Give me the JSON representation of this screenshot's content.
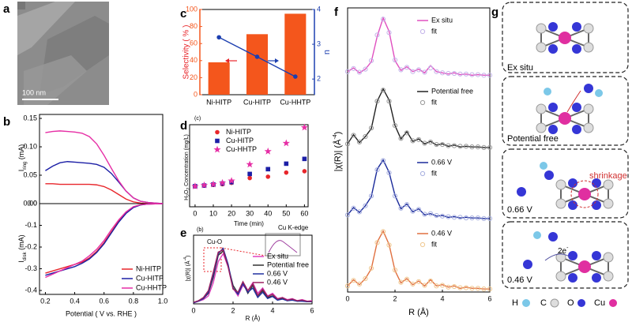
{
  "panel_a": {
    "label": "a",
    "scale_bar": "100 nm"
  },
  "chart_data": [
    {
      "type": "line",
      "panel": "b",
      "ylabel": [
        "I",
        "ring",
        " (mA)"
      ],
      "x": [
        0.2,
        0.25,
        0.3,
        0.35,
        0.4,
        0.45,
        0.5,
        0.55,
        0.6,
        0.65,
        0.7,
        0.75,
        0.8,
        0.85,
        0.9,
        0.95,
        1.0
      ],
      "xlim": [
        0.16,
        1.0
      ],
      "ylim": [
        0,
        0.157
      ],
      "yticks": [
        {
          "value": 0,
          "label": "0.00"
        },
        0.05,
        {
          "value": 0.1,
          "label": "0.10"
        },
        0.15
      ],
      "series": [
        {
          "color": "#e8262b",
          "values": [
            0.035,
            0.035,
            0.034,
            0.034,
            0.034,
            0.034,
            0.034,
            0.033,
            0.03,
            0.024,
            0.016,
            0.008,
            0.003,
            0.001,
            0,
            0,
            0
          ]
        },
        {
          "color": "#1c1fa6",
          "values": [
            0.058,
            0.066,
            0.072,
            0.074,
            0.073,
            0.072,
            0.071,
            0.069,
            0.064,
            0.053,
            0.038,
            0.022,
            0.01,
            0.004,
            0.002,
            0.001,
            0
          ]
        },
        {
          "color": "#e62ea5",
          "values": [
            0.125,
            0.127,
            0.128,
            0.127,
            0.126,
            0.124,
            0.118,
            0.105,
            0.085,
            0.062,
            0.04,
            0.022,
            0.01,
            0.004,
            0.002,
            0.001,
            0
          ]
        }
      ]
    },
    {
      "type": "line",
      "ylabel": [
        "I",
        "disk",
        " (mA)"
      ],
      "xlabel": "Potential ( V vs. RHE )",
      "x": [
        0.2,
        0.25,
        0.3,
        0.35,
        0.4,
        0.45,
        0.5,
        0.55,
        0.6,
        0.65,
        0.7,
        0.75,
        0.8,
        0.85,
        0.9,
        0.95,
        1.0
      ],
      "xlim": [
        0.16,
        1.0
      ],
      "ylim": [
        -0.418,
        0
      ],
      "xticks": [
        0.2,
        0.4,
        0.6,
        0.8,
        {
          "value": 1.0,
          "label": "1.0"
        }
      ],
      "yticks": [
        {
          "value": 0,
          "label": "0.0"
        },
        -0.1,
        -0.2,
        -0.3,
        -0.4
      ],
      "legend": "lower right",
      "series": [
        {
          "name": "Ni-HITP",
          "color": "#e8262b",
          "values": [
            -0.32,
            -0.31,
            -0.3,
            -0.29,
            -0.28,
            -0.27,
            -0.25,
            -0.22,
            -0.18,
            -0.13,
            -0.08,
            -0.04,
            -0.015,
            -0.005,
            -0.002,
            -0.001,
            0
          ]
        },
        {
          "name": "Cu-HITP",
          "color": "#1c1fa6",
          "values": [
            -0.33,
            -0.32,
            -0.31,
            -0.3,
            -0.29,
            -0.275,
            -0.255,
            -0.225,
            -0.185,
            -0.135,
            -0.085,
            -0.045,
            -0.018,
            -0.006,
            -0.002,
            -0.001,
            0
          ]
        },
        {
          "name": "Cu-HHTP",
          "color": "#e62ea5",
          "values": [
            -0.34,
            -0.325,
            -0.31,
            -0.295,
            -0.28,
            -0.265,
            -0.24,
            -0.21,
            -0.17,
            -0.12,
            -0.075,
            -0.038,
            -0.014,
            -0.005,
            -0.002,
            -0.001,
            0
          ]
        }
      ]
    },
    {
      "type": "bar",
      "panel": "c",
      "ylabel": "Selectivity ( % )",
      "y2label": "n",
      "categories": [
        "Ni-HITP",
        "Cu-HITP",
        "Cu-HHTP"
      ],
      "ylim": [
        0,
        100
      ],
      "yticks": [
        0,
        20,
        40,
        60,
        80,
        100
      ],
      "y2lim": [
        1.55,
        4
      ],
      "y2ticks": [
        2,
        3,
        4
      ],
      "series": [
        {
          "color": "#f4561c",
          "values": [
            38,
            71,
            95
          ]
        },
        {
          "color": "#1c3fb0",
          "axis": "y2",
          "values": [
            3.2,
            2.64,
            2.07
          ]
        }
      ]
    },
    {
      "type": "scatter",
      "panel": "d",
      "annotations": [
        "(c)"
      ],
      "ylabel": [
        "H",
        "2",
        "O",
        "2",
        " Concentration (mg/L)"
      ],
      "xlabel": "Time (min)",
      "x": [
        0,
        5,
        10,
        15,
        20,
        30,
        40,
        50,
        60
      ],
      "xlim": [
        -3,
        62
      ],
      "ylim": [
        -3,
        9
      ],
      "xticks": [
        0,
        10,
        20,
        30,
        40,
        50,
        60
      ],
      "legend": "upper left",
      "series": [
        {
          "name": "Ni-HITP",
          "color": "#e8262b",
          "marker": "circle",
          "values": [
            0,
            0.1,
            0.2,
            0.3,
            0.5,
            1.2,
            1.4,
            2.0,
            2.2
          ]
        },
        {
          "name": "Cu-HITP",
          "color": "#1c1fa6",
          "marker": "square",
          "values": [
            0,
            0.1,
            0.25,
            0.4,
            0.6,
            1.8,
            2.5,
            3.3,
            4.0
          ]
        },
        {
          "name": "Cu-HHTP",
          "color": "#e62ea5",
          "marker": "star",
          "values": [
            0,
            0.15,
            0.3,
            0.5,
            0.8,
            3.2,
            5.1,
            6.3,
            8.6
          ]
        }
      ]
    },
    {
      "type": "line",
      "panel": "e",
      "annotations": [
        "(b)",
        "Cu-O",
        "Cu K-edge"
      ],
      "ylabel": [
        "|χ(R)| (Å",
        "-4",
        ")"
      ],
      "xlabel": "R (Å)",
      "x": [
        0,
        0.25,
        0.5,
        0.75,
        1,
        1.25,
        1.5,
        1.75,
        2,
        2.25,
        2.5,
        2.75,
        3,
        3.25,
        3.5,
        3.75,
        4,
        4.25,
        4.5,
        4.75,
        5,
        5.25,
        5.5,
        5.75,
        6
      ],
      "xlim": [
        0,
        6
      ],
      "ylim": [
        0,
        1.3
      ],
      "xticks": [
        0,
        2,
        4,
        6
      ],
      "legend": "center right",
      "series": [
        {
          "name": "Ex situ",
          "color": "#e040c0",
          "values": [
            0.02,
            0.05,
            0.08,
            0.15,
            0.4,
            0.8,
            0.95,
            0.7,
            0.3,
            0.15,
            0.35,
            0.25,
            0.4,
            0.2,
            0.3,
            0.15,
            0.2,
            0.1,
            0.12,
            0.08,
            0.1,
            0.06,
            0.08,
            0.05,
            0.06
          ]
        },
        {
          "name": "Potential free",
          "color": "#333333",
          "values": [
            0.02,
            0.06,
            0.1,
            0.2,
            0.5,
            0.92,
            1.0,
            0.72,
            0.35,
            0.2,
            0.4,
            0.2,
            0.35,
            0.15,
            0.25,
            0.12,
            0.15,
            0.08,
            0.1,
            0.06,
            0.08,
            0.05,
            0.06,
            0.04,
            0.05
          ]
        },
        {
          "name": "0.66 V",
          "color": "#2030a0",
          "values": [
            0.02,
            0.05,
            0.1,
            0.22,
            0.55,
            0.95,
            1.05,
            0.75,
            0.3,
            0.18,
            0.38,
            0.22,
            0.3,
            0.12,
            0.22,
            0.1,
            0.14,
            0.07,
            0.09,
            0.06,
            0.07,
            0.05,
            0.05,
            0.04,
            0.04
          ]
        },
        {
          "name": "0.46 V",
          "color": "#9a2060",
          "values": [
            0.03,
            0.06,
            0.12,
            0.25,
            0.6,
            0.98,
            1.02,
            0.7,
            0.28,
            0.22,
            0.42,
            0.25,
            0.38,
            0.16,
            0.28,
            0.14,
            0.18,
            0.09,
            0.12,
            0.07,
            0.09,
            0.06,
            0.07,
            0.05,
            0.05
          ]
        }
      ]
    },
    {
      "type": "line",
      "panel": "f",
      "ylabel": [
        "|χ(R)| (Å",
        "-4",
        ")"
      ],
      "x": [
        0,
        0.25,
        0.5,
        0.75,
        1,
        1.25,
        1.5,
        1.75,
        2,
        2.25,
        2.5,
        2.75,
        3,
        3.25,
        3.5,
        3.75,
        4,
        4.25,
        4.5,
        4.75,
        5,
        5.25,
        5.5,
        5.75,
        6
      ],
      "xlim": [
        0,
        6
      ],
      "ylim": [
        0,
        1.1
      ],
      "legend": "upper right",
      "series": [
        {
          "name": "Ex situ",
          "color": "#e050c0",
          "values": [
            0.12,
            0.18,
            0.1,
            0.16,
            0.28,
            0.7,
            1.0,
            0.78,
            0.3,
            0.14,
            0.2,
            0.12,
            0.16,
            0.1,
            0.22,
            0.12,
            0.1,
            0.08,
            0.1,
            0.07,
            0.08,
            0.06,
            0.07,
            0.06,
            0.06
          ]
        },
        {
          "name": "fit",
          "color": "#c4b4ea",
          "marker": "circle",
          "values": [
            0.12,
            0.17,
            0.11,
            0.16,
            0.3,
            0.72,
            0.98,
            0.76,
            0.31,
            0.15,
            0.19,
            0.12,
            0.15,
            0.11,
            0.18,
            0.12,
            0.1,
            0.09,
            0.09,
            0.08,
            0.08,
            0.07,
            0.07,
            0.06,
            0.06
          ]
        }
      ]
    },
    {
      "type": "line",
      "x": [
        0,
        0.25,
        0.5,
        0.75,
        1,
        1.25,
        1.5,
        1.75,
        2,
        2.25,
        2.5,
        2.75,
        3,
        3.25,
        3.5,
        3.75,
        4,
        4.25,
        4.5,
        4.75,
        5,
        5.25,
        5.5,
        5.75,
        6
      ],
      "xlim": [
        0,
        6
      ],
      "ylim": [
        0,
        1.1
      ],
      "legend": "upper right",
      "series": [
        {
          "name": "Potential free",
          "color": "#222222",
          "values": [
            0.1,
            0.25,
            0.12,
            0.22,
            0.35,
            0.8,
            1.0,
            0.82,
            0.4,
            0.18,
            0.3,
            0.14,
            0.18,
            0.1,
            0.14,
            0.08,
            0.1,
            0.06,
            0.08,
            0.05,
            0.06,
            0.05,
            0.05,
            0.04,
            0.04
          ]
        },
        {
          "name": "fit",
          "color": "#9a9a9a",
          "marker": "circle",
          "values": [
            0.1,
            0.24,
            0.13,
            0.22,
            0.36,
            0.8,
            0.98,
            0.8,
            0.4,
            0.19,
            0.28,
            0.15,
            0.17,
            0.11,
            0.13,
            0.09,
            0.09,
            0.07,
            0.07,
            0.06,
            0.06,
            0.05,
            0.05,
            0.04,
            0.04
          ]
        }
      ]
    },
    {
      "type": "line",
      "x": [
        0,
        0.25,
        0.5,
        0.75,
        1,
        1.25,
        1.5,
        1.75,
        2,
        2.25,
        2.5,
        2.75,
        3,
        3.25,
        3.5,
        3.75,
        4,
        4.25,
        4.5,
        4.75,
        5,
        5.25,
        5.5,
        5.75,
        6
      ],
      "xlim": [
        0,
        6
      ],
      "ylim": [
        0,
        1.1
      ],
      "legend": "upper right",
      "series": [
        {
          "name": "0.66 V",
          "color": "#1a2a9a",
          "values": [
            0.1,
            0.22,
            0.14,
            0.25,
            0.4,
            0.85,
            1.0,
            0.8,
            0.42,
            0.2,
            0.28,
            0.15,
            0.2,
            0.1,
            0.12,
            0.08,
            0.09,
            0.06,
            0.07,
            0.05,
            0.06,
            0.05,
            0.05,
            0.04,
            0.04
          ]
        },
        {
          "name": "fit",
          "color": "#a8b0e0",
          "marker": "circle",
          "values": [
            0.1,
            0.21,
            0.15,
            0.25,
            0.41,
            0.84,
            0.99,
            0.79,
            0.41,
            0.21,
            0.27,
            0.16,
            0.19,
            0.11,
            0.12,
            0.09,
            0.08,
            0.07,
            0.06,
            0.06,
            0.05,
            0.05,
            0.05,
            0.04,
            0.04
          ]
        }
      ]
    },
    {
      "type": "line",
      "xlabel": "R (Å)",
      "x": [
        0,
        0.25,
        0.5,
        0.75,
        1,
        1.25,
        1.5,
        1.75,
        2,
        2.25,
        2.5,
        2.75,
        3,
        3.25,
        3.5,
        3.75,
        4,
        4.25,
        4.5,
        4.75,
        5,
        5.25,
        5.5,
        5.75,
        6
      ],
      "xlim": [
        0,
        6
      ],
      "ylim": [
        0,
        1.1
      ],
      "xticks": [
        0,
        2,
        4,
        6
      ],
      "legend": "upper right",
      "series": [
        {
          "name": "0.46 V",
          "color": "#e07040",
          "values": [
            0.1,
            0.2,
            0.12,
            0.22,
            0.38,
            0.82,
            1.0,
            0.78,
            0.35,
            0.15,
            0.22,
            0.12,
            0.18,
            0.1,
            0.2,
            0.1,
            0.12,
            0.08,
            0.1,
            0.06,
            0.08,
            0.06,
            0.06,
            0.05,
            0.05
          ]
        },
        {
          "name": "fit",
          "color": "#f0c890",
          "marker": "circle",
          "values": [
            0.1,
            0.19,
            0.13,
            0.22,
            0.39,
            0.81,
            0.99,
            0.77,
            0.36,
            0.16,
            0.21,
            0.13,
            0.17,
            0.11,
            0.18,
            0.1,
            0.11,
            0.08,
            0.09,
            0.07,
            0.07,
            0.06,
            0.06,
            0.05,
            0.05
          ]
        }
      ]
    }
  ],
  "panel_g": {
    "label": "g",
    "states": [
      "Ex situ",
      "Potential free",
      "0.66 V",
      "0.46 V"
    ],
    "shrinkage": "shrinkage",
    "electrons": [
      "2e",
      "-"
    ],
    "legend": [
      "H",
      "C",
      "O",
      "Cu"
    ]
  }
}
